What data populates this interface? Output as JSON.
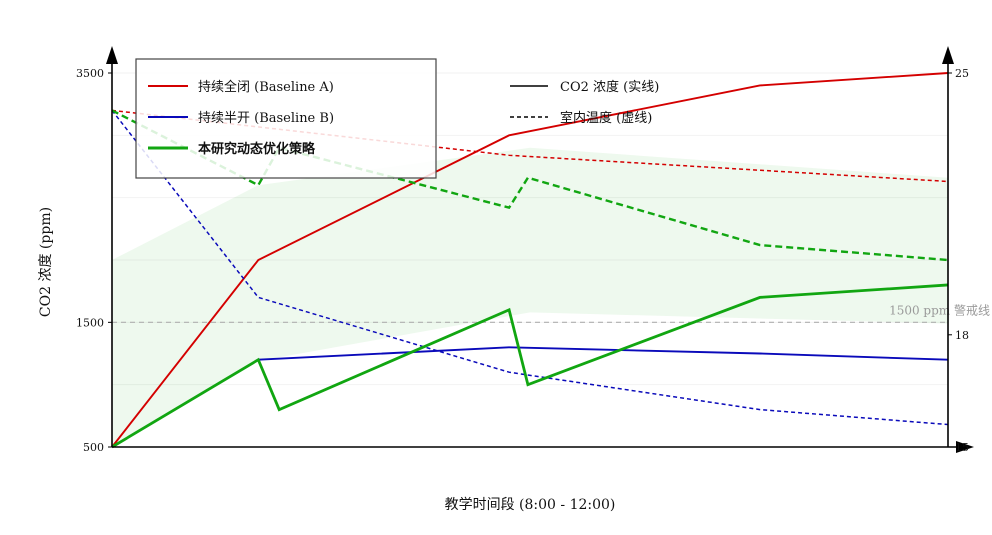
{
  "chart_data": {
    "type": "line",
    "title": "",
    "xlabel": "教学时间段 (8:00 - 12:00)",
    "ylabel_left": "CO2 浓度 (ppm)",
    "ylabel_right": "",
    "x_range": [
      0,
      8
    ],
    "y_left_range": [
      500,
      3500
    ],
    "y_right_range": [
      15,
      25
    ],
    "y_left_ticks": [
      "500",
      "1500",
      "3500"
    ],
    "y_right_ticks": [
      "15",
      "18",
      "25"
    ],
    "grid": true,
    "legend_position": "top-left",
    "reference_line": {
      "value": 1500,
      "label": "1500 ppm 警戒线"
    },
    "legend_groups": {
      "series_entries": [
        {
          "label": "持续全闭 (Baseline A)",
          "bold": false
        },
        {
          "label": "持续半开 (Baseline B)",
          "bold": false
        },
        {
          "label": "本研究动态优化策略",
          "bold": true
        }
      ],
      "style_entries": [
        {
          "label": "CO2 浓度 (实线)",
          "style": "solid"
        },
        {
          "label": "室内温度 (虚线)",
          "style": "dashed"
        }
      ]
    },
    "band": {
      "x": [
        0,
        1.4,
        4,
        8
      ],
      "upper": [
        20,
        22,
        23,
        22.2
      ],
      "lower": [
        15,
        17.3,
        18.6,
        18.3
      ]
    },
    "series": [
      {
        "name": "持续全闭 (Baseline A)",
        "color": "#d40000",
        "co2": [
          [
            0,
            500
          ],
          [
            1.4,
            2000
          ],
          [
            3.8,
            3000
          ],
          [
            6.2,
            3400
          ],
          [
            8,
            3500
          ]
        ],
        "temp": [
          [
            0,
            24.0
          ],
          [
            3.8,
            22.8
          ],
          [
            8,
            22.1
          ]
        ]
      },
      {
        "name": "持续半开 (Baseline B)",
        "color": "#0a0aba",
        "co2": [
          [
            0,
            500
          ],
          [
            1.4,
            1200
          ],
          [
            3.8,
            1300
          ],
          [
            6.2,
            1250
          ],
          [
            8,
            1200
          ]
        ],
        "temp": [
          [
            0,
            24.0
          ],
          [
            1.4,
            19.0
          ],
          [
            3.8,
            17.0
          ],
          [
            6.2,
            16.0
          ],
          [
            8,
            15.6
          ]
        ]
      },
      {
        "name": "本研究动态优化策略",
        "color": "#11a611",
        "co2": [
          [
            0,
            500
          ],
          [
            1.4,
            1200
          ],
          [
            1.6,
            800
          ],
          [
            3.8,
            1600
          ],
          [
            3.98,
            1000
          ],
          [
            6.2,
            1700
          ],
          [
            8,
            1800
          ]
        ],
        "temp": [
          [
            0,
            24.0
          ],
          [
            1.4,
            22.0
          ],
          [
            1.6,
            23.0
          ],
          [
            3.8,
            21.4
          ],
          [
            3.98,
            22.2
          ],
          [
            6.2,
            20.4
          ],
          [
            8,
            20.0
          ]
        ]
      }
    ]
  }
}
